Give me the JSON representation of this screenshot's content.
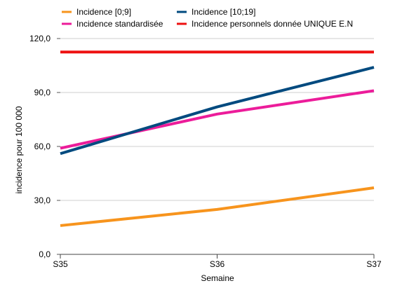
{
  "chart_data": {
    "type": "line",
    "title": "",
    "xlabel": "Semaine",
    "ylabel": "incidence pour 100 000",
    "categories": [
      "S35",
      "S36",
      "S37"
    ],
    "ylim": [
      0,
      120
    ],
    "yticks": [
      0,
      30,
      60,
      90,
      120
    ],
    "ytick_labels": [
      "0,0",
      "30,0",
      "60,0",
      "90,0",
      "120,0"
    ],
    "grid": true,
    "legend_position": "top",
    "series": [
      {
        "name": "Incidence [0;9]",
        "color": "#f7941d",
        "values": [
          16,
          25,
          37
        ]
      },
      {
        "name": "Incidence [10;19]",
        "color": "#004a7f",
        "values": [
          56,
          82,
          104
        ]
      },
      {
        "name": "Incidence standardisée",
        "color": "#ec1c9a",
        "values": [
          59,
          78,
          91
        ]
      },
      {
        "name": "Incidence personnels donnée UNIQUE E.N",
        "color": "#ee1111",
        "values": [
          112.5,
          112.5,
          112.5
        ]
      }
    ]
  }
}
